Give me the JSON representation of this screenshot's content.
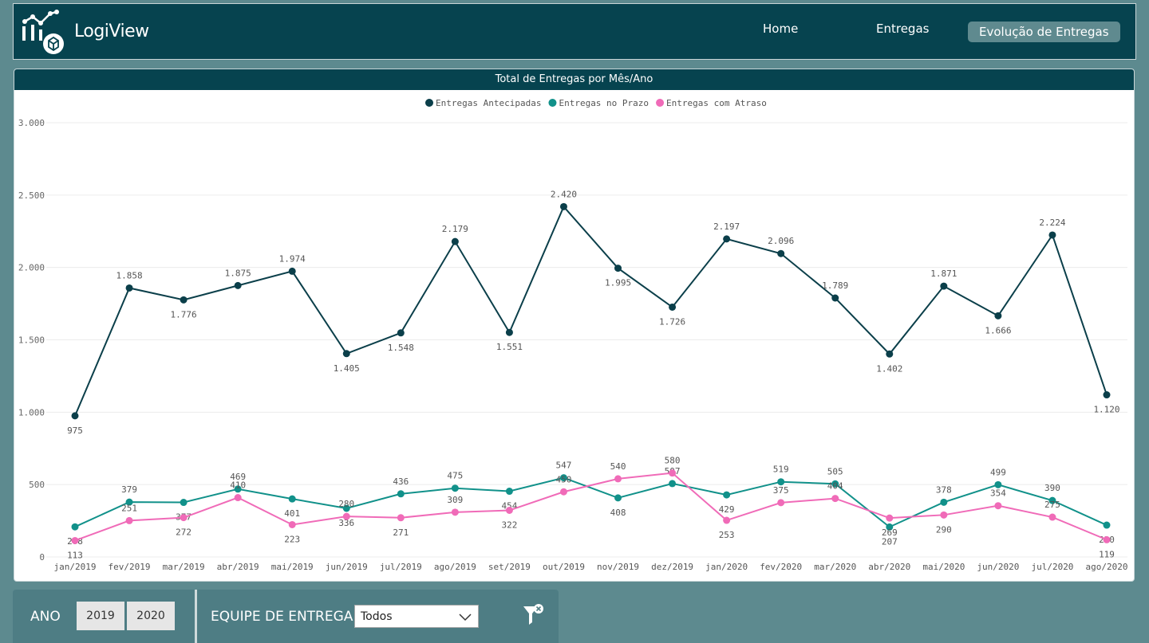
{
  "header": {
    "brand": "LogiView",
    "nav": [
      "Home",
      "Entregas",
      "Evolução de Entregas"
    ]
  },
  "chart_data": {
    "type": "line",
    "title": "Total de Entregas por Mês/Ano",
    "categories": [
      "jan/2019",
      "fev/2019",
      "mar/2019",
      "abr/2019",
      "mai/2019",
      "jun/2019",
      "jul/2019",
      "ago/2019",
      "set/2019",
      "out/2019",
      "nov/2019",
      "dez/2019",
      "jan/2020",
      "fev/2020",
      "mar/2020",
      "abr/2020",
      "mai/2020",
      "jun/2020",
      "jul/2020",
      "ago/2020"
    ],
    "series": [
      {
        "name": "Entregas Antecipadas",
        "color": "#0b3f4a",
        "values": [
          975,
          1858,
          1776,
          1875,
          1974,
          1405,
          1548,
          2179,
          1551,
          2420,
          1995,
          1726,
          2197,
          2096,
          1789,
          1402,
          1871,
          1666,
          2224,
          1120
        ],
        "value_labels": [
          "975",
          "1.858",
          "1.776",
          "1.875",
          "1.974",
          "1.405",
          "1.548",
          "2.179",
          "1.551",
          "2.420",
          "1.995",
          "1.726",
          "2.197",
          "2.096",
          "1.789",
          "1.402",
          "1.871",
          "1.666",
          "2.224",
          "1.120"
        ]
      },
      {
        "name": "Entregas no Prazo",
        "color": "#11918a",
        "values": [
          208,
          379,
          377,
          469,
          401,
          336,
          436,
          475,
          454,
          547,
          408,
          507,
          429,
          519,
          505,
          207,
          378,
          499,
          390,
          220
        ]
      },
      {
        "name": "Entregas com Atraso",
        "color": "#f06bb8",
        "values": [
          113,
          251,
          272,
          410,
          223,
          280,
          271,
          309,
          322,
          450,
          540,
          580,
          253,
          375,
          404,
          269,
          290,
          354,
          275,
          119
        ]
      }
    ],
    "ylim": [
      0,
      3000
    ],
    "yticks": [
      0,
      500,
      {
        "value": 1000,
        "label": "1.000"
      },
      {
        "value": 1500,
        "label": "1.500"
      },
      {
        "value": 2000,
        "label": "2.000"
      },
      {
        "value": 2500,
        "label": "2.500"
      },
      {
        "value": 3000,
        "label": "3.000"
      }
    ],
    "grid": true
  },
  "filters": {
    "year_label": "ANO",
    "years": [
      "2019",
      "2020"
    ],
    "team_label": "EQUIPE DE ENTREGA",
    "team_value": "Todos"
  }
}
